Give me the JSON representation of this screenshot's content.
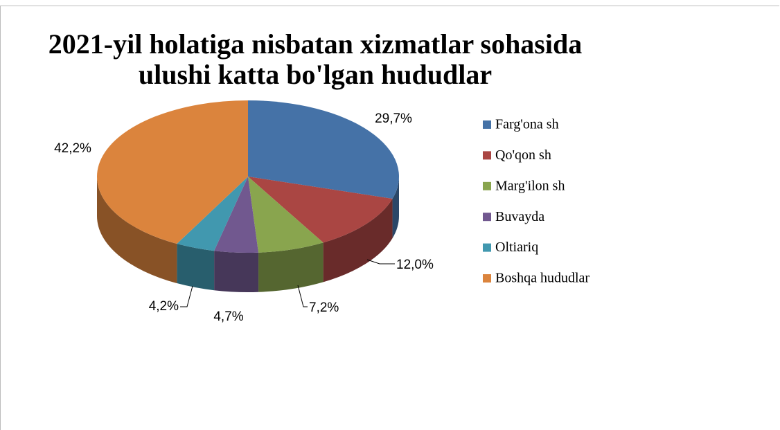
{
  "chart_data": {
    "type": "pie3d",
    "title": "2021-yil holatiga nisbatan xizmatlar sohasida ulushi katta bo'lgan hududlar",
    "categories": [
      "Farg'ona sh",
      "Qo'qon sh",
      "Marg'ilon sh",
      "Buvayda",
      "Oltiariq",
      "Boshqa hududlar"
    ],
    "values": [
      29.7,
      12.0,
      7.2,
      4.7,
      4.2,
      42.2
    ],
    "value_labels": [
      "29,7%",
      "12,0%",
      "7,2%",
      "4,7%",
      "4,2%",
      "42,2%"
    ],
    "colors": [
      "#4572a7",
      "#aa4643",
      "#89a54e",
      "#71588f",
      "#4198af",
      "#db843d"
    ],
    "legend": "right"
  }
}
